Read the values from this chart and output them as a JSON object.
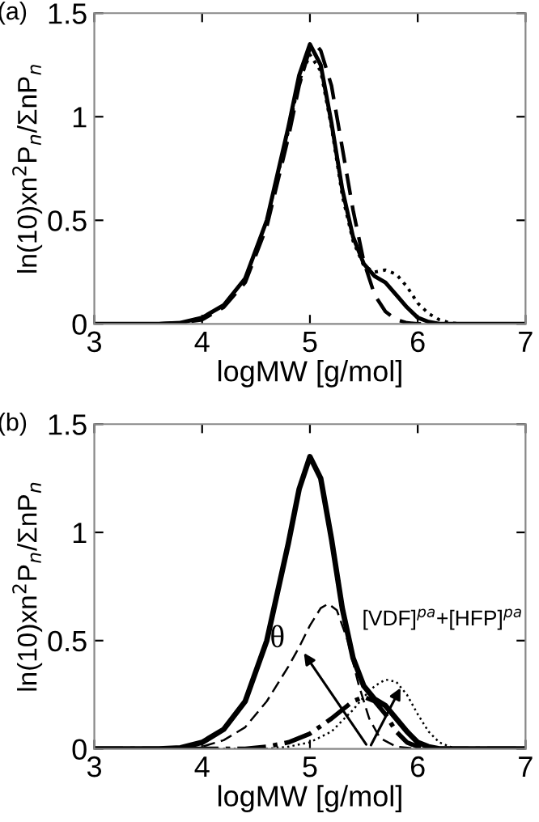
{
  "chart_data": [
    {
      "type": "line",
      "title": "(a)",
      "xlabel": "logMW [g/mol]",
      "ylabel": "ln(10)xn$^{2}$P$_{n}$/ΣnP$_{n}$",
      "xlim": [
        3,
        7
      ],
      "ylim": [
        0,
        1.5
      ],
      "xticks": [
        3,
        4,
        5,
        6,
        7
      ],
      "yticks": [
        0,
        0.5,
        1,
        1.5
      ],
      "grid": false,
      "marker": "none",
      "series": [
        {
          "color": "#000000",
          "line_style": "solid",
          "x": [
            3,
            3.6,
            3.8,
            4.0,
            4.2,
            4.4,
            4.6,
            4.8,
            4.9,
            5.0,
            5.1,
            5.2,
            5.3,
            5.4,
            5.5,
            5.6,
            5.7,
            5.8,
            5.9,
            6.0,
            6.1,
            6.2,
            7
          ],
          "values": [
            0,
            0,
            0.005,
            0.03,
            0.09,
            0.22,
            0.5,
            0.95,
            1.2,
            1.35,
            1.25,
            0.97,
            0.65,
            0.42,
            0.29,
            0.23,
            0.2,
            0.14,
            0.08,
            0.03,
            0.01,
            0,
            0
          ]
        },
        {
          "color": "#000000",
          "line_style": "dashed",
          "x": [
            3,
            3.6,
            3.8,
            4.0,
            4.2,
            4.4,
            4.6,
            4.8,
            4.9,
            5.0,
            5.05,
            5.1,
            5.2,
            5.3,
            5.4,
            5.5,
            5.6,
            5.7,
            5.8,
            5.9,
            6.0,
            7
          ],
          "values": [
            0,
            0,
            0.005,
            0.02,
            0.08,
            0.2,
            0.47,
            0.9,
            1.15,
            1.33,
            1.35,
            1.32,
            1.15,
            0.85,
            0.55,
            0.3,
            0.14,
            0.06,
            0.02,
            0.005,
            0,
            0
          ]
        },
        {
          "color": "#000000",
          "line_style": "dotted",
          "x": [
            3,
            3.6,
            3.8,
            4.0,
            4.2,
            4.4,
            4.6,
            4.8,
            4.9,
            5.0,
            5.1,
            5.2,
            5.3,
            5.4,
            5.5,
            5.6,
            5.7,
            5.8,
            5.9,
            6.0,
            6.1,
            6.2,
            6.3,
            6.4,
            7
          ],
          "values": [
            0,
            0,
            0.005,
            0.03,
            0.09,
            0.22,
            0.5,
            0.93,
            1.17,
            1.3,
            1.22,
            0.95,
            0.62,
            0.4,
            0.28,
            0.25,
            0.26,
            0.24,
            0.18,
            0.1,
            0.05,
            0.02,
            0.005,
            0,
            0
          ]
        }
      ]
    },
    {
      "type": "line",
      "title": "(b)",
      "xlabel": "logMW [g/mol]",
      "ylabel": "ln(10)xn$^{2}$P$_{n}$/ΣnP$_{n}$",
      "xlim": [
        3,
        7
      ],
      "ylim": [
        0,
        1.5
      ],
      "xticks": [
        3,
        4,
        5,
        6,
        7
      ],
      "yticks": [
        0,
        0.5,
        1,
        1.5
      ],
      "grid": false,
      "marker": "none",
      "annotations": [
        {
          "text": "θ",
          "x": 4.92,
          "y": 0.46
        },
        {
          "text": "[VDF]$^{pa}$+[HFP]$^{pa}$",
          "x": 5.86,
          "y": 0.3
        }
      ],
      "series": [
        {
          "color": "#000000",
          "line_style": "solid",
          "x": [
            3,
            3.6,
            3.8,
            4.0,
            4.2,
            4.4,
            4.6,
            4.8,
            4.9,
            5.0,
            5.1,
            5.2,
            5.3,
            5.4,
            5.5,
            5.6,
            5.7,
            5.8,
            5.9,
            6.0,
            6.1,
            6.2,
            7
          ],
          "values": [
            0,
            0,
            0.005,
            0.03,
            0.09,
            0.22,
            0.5,
            0.95,
            1.2,
            1.35,
            1.25,
            0.97,
            0.65,
            0.42,
            0.29,
            0.23,
            0.2,
            0.14,
            0.08,
            0.03,
            0.01,
            0,
            0
          ]
        },
        {
          "color": "#000000",
          "line_style": "dashed",
          "x": [
            3,
            3.9,
            4.0,
            4.2,
            4.4,
            4.6,
            4.8,
            4.9,
            5.0,
            5.1,
            5.17,
            5.25,
            5.35,
            5.45,
            5.55,
            5.65,
            5.8,
            6.0,
            7
          ],
          "values": [
            0,
            0,
            0.01,
            0.04,
            0.1,
            0.22,
            0.38,
            0.47,
            0.57,
            0.65,
            0.67,
            0.64,
            0.5,
            0.3,
            0.14,
            0.05,
            0.01,
            0,
            0
          ]
        },
        {
          "color": "#000000",
          "line_style": "dotted",
          "x": [
            3,
            4.6,
            4.8,
            5.0,
            5.2,
            5.4,
            5.5,
            5.6,
            5.7,
            5.8,
            5.9,
            6.0,
            6.1,
            6.2,
            6.3,
            6.4,
            7
          ],
          "values": [
            0,
            0,
            0.01,
            0.03,
            0.08,
            0.18,
            0.24,
            0.29,
            0.32,
            0.31,
            0.25,
            0.16,
            0.08,
            0.03,
            0.01,
            0,
            0
          ]
        },
        {
          "color": "#000000",
          "line_style": "dashdot",
          "x": [
            3,
            4.4,
            4.6,
            4.8,
            5.0,
            5.2,
            5.4,
            5.5,
            5.6,
            5.7,
            5.8,
            5.9,
            6.0,
            6.1,
            7
          ],
          "values": [
            0,
            0,
            0.01,
            0.03,
            0.07,
            0.14,
            0.22,
            0.24,
            0.22,
            0.16,
            0.08,
            0.03,
            0.01,
            0,
            0
          ]
        }
      ]
    }
  ]
}
